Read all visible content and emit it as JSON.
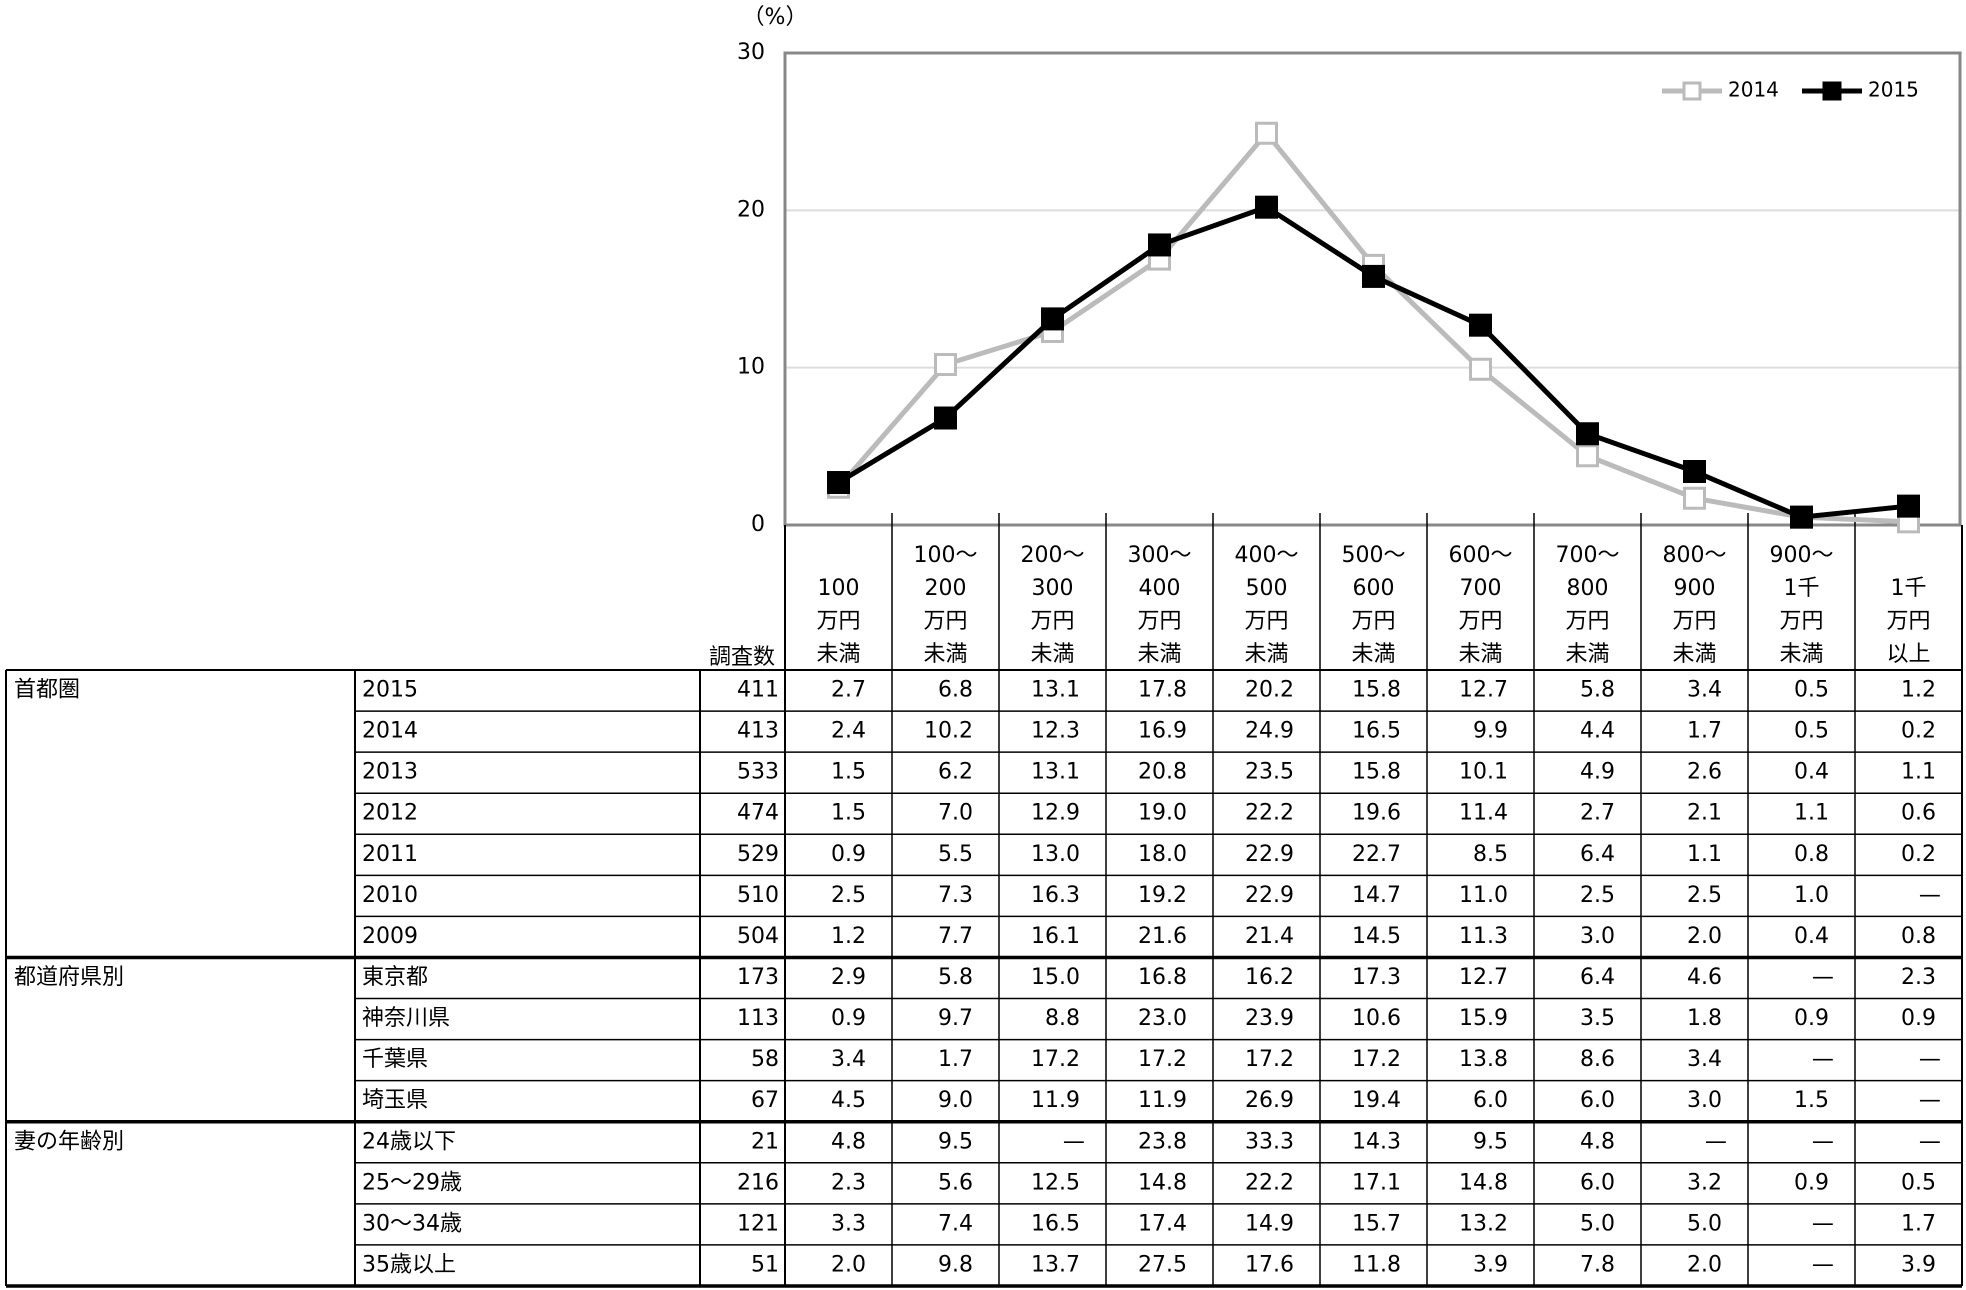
{
  "chart_data": {
    "type": "line",
    "y_unit": "（%）",
    "categories": [
      "100\n万円\n未満",
      "100～\n200\n万円\n未満",
      "200～\n300\n万円\n未満",
      "300～\n400\n万円\n未満",
      "400～\n500\n万円\n未満",
      "500～\n600\n万円\n未満",
      "600～\n700\n万円\n未満",
      "700～\n800\n万円\n未満",
      "800～\n900\n万円\n未満",
      "900～\n1千\n万円\n未満",
      "1千\n万円\n以上"
    ],
    "series": [
      {
        "name": "2014",
        "color": "#bbbbbb",
        "marker": "square-open",
        "values": [
          2.4,
          10.2,
          12.3,
          16.9,
          24.9,
          16.5,
          9.9,
          4.4,
          1.7,
          0.5,
          0.2
        ]
      },
      {
        "name": "2015",
        "color": "#000000",
        "marker": "square",
        "values": [
          2.7,
          6.8,
          13.1,
          17.8,
          20.2,
          15.8,
          12.7,
          5.8,
          3.4,
          0.5,
          1.2
        ]
      }
    ],
    "ylim": [
      0,
      30
    ],
    "yticks": [
      0,
      10,
      20,
      30
    ],
    "grid": true,
    "legend": "top-right"
  },
  "table": {
    "count_header": "調査数",
    "groups": [
      {
        "name": "首都圏",
        "rows": [
          {
            "label": "2015",
            "n": "411",
            "values": [
              "2.7",
              "6.8",
              "13.1",
              "17.8",
              "20.2",
              "15.8",
              "12.7",
              "5.8",
              "3.4",
              "0.5",
              "1.2"
            ]
          },
          {
            "label": "2014",
            "n": "413",
            "values": [
              "2.4",
              "10.2",
              "12.3",
              "16.9",
              "24.9",
              "16.5",
              "9.9",
              "4.4",
              "1.7",
              "0.5",
              "0.2"
            ]
          },
          {
            "label": "2013",
            "n": "533",
            "values": [
              "1.5",
              "6.2",
              "13.1",
              "20.8",
              "23.5",
              "15.8",
              "10.1",
              "4.9",
              "2.6",
              "0.4",
              "1.1"
            ]
          },
          {
            "label": "2012",
            "n": "474",
            "values": [
              "1.5",
              "7.0",
              "12.9",
              "19.0",
              "22.2",
              "19.6",
              "11.4",
              "2.7",
              "2.1",
              "1.1",
              "0.6"
            ]
          },
          {
            "label": "2011",
            "n": "529",
            "values": [
              "0.9",
              "5.5",
              "13.0",
              "18.0",
              "22.9",
              "22.7",
              "8.5",
              "6.4",
              "1.1",
              "0.8",
              "0.2"
            ]
          },
          {
            "label": "2010",
            "n": "510",
            "values": [
              "2.5",
              "7.3",
              "16.3",
              "19.2",
              "22.9",
              "14.7",
              "11.0",
              "2.5",
              "2.5",
              "1.0",
              "—"
            ]
          },
          {
            "label": "2009",
            "n": "504",
            "values": [
              "1.2",
              "7.7",
              "16.1",
              "21.6",
              "21.4",
              "14.5",
              "11.3",
              "3.0",
              "2.0",
              "0.4",
              "0.8"
            ]
          }
        ]
      },
      {
        "name": "都道府県別",
        "rows": [
          {
            "label": "東京都",
            "n": "173",
            "values": [
              "2.9",
              "5.8",
              "15.0",
              "16.8",
              "16.2",
              "17.3",
              "12.7",
              "6.4",
              "4.6",
              "—",
              "2.3"
            ]
          },
          {
            "label": "神奈川県",
            "n": "113",
            "values": [
              "0.9",
              "9.7",
              "8.8",
              "23.0",
              "23.9",
              "10.6",
              "15.9",
              "3.5",
              "1.8",
              "0.9",
              "0.9"
            ]
          },
          {
            "label": "千葉県",
            "n": "58",
            "values": [
              "3.4",
              "1.7",
              "17.2",
              "17.2",
              "17.2",
              "17.2",
              "13.8",
              "8.6",
              "3.4",
              "—",
              "—"
            ]
          },
          {
            "label": "埼玉県",
            "n": "67",
            "values": [
              "4.5",
              "9.0",
              "11.9",
              "11.9",
              "26.9",
              "19.4",
              "6.0",
              "6.0",
              "3.0",
              "1.5",
              "—"
            ]
          }
        ]
      },
      {
        "name": "妻の年齢別",
        "rows": [
          {
            "label": "24歳以下",
            "n": "21",
            "values": [
              "4.8",
              "9.5",
              "—",
              "23.8",
              "33.3",
              "14.3",
              "9.5",
              "4.8",
              "—",
              "—",
              "—"
            ]
          },
          {
            "label": "25～29歳",
            "n": "216",
            "values": [
              "2.3",
              "5.6",
              "12.5",
              "14.8",
              "22.2",
              "17.1",
              "14.8",
              "6.0",
              "3.2",
              "0.9",
              "0.5"
            ]
          },
          {
            "label": "30～34歳",
            "n": "121",
            "values": [
              "3.3",
              "7.4",
              "16.5",
              "17.4",
              "14.9",
              "15.7",
              "13.2",
              "5.0",
              "5.0",
              "—",
              "1.7"
            ]
          },
          {
            "label": "35歳以上",
            "n": "51",
            "values": [
              "2.0",
              "9.8",
              "13.7",
              "27.5",
              "17.6",
              "11.8",
              "3.9",
              "7.8",
              "2.0",
              "—",
              "3.9"
            ]
          }
        ]
      }
    ]
  }
}
